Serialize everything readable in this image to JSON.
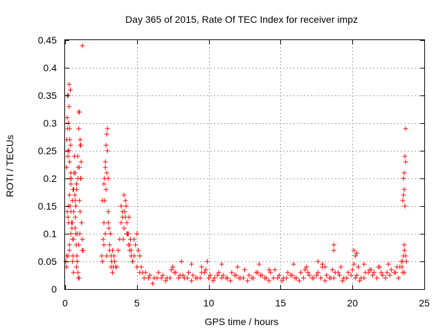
{
  "chart_data": {
    "type": "scatter",
    "title": "Day 365 of 2015, Rate Of TEC Index for receiver impz",
    "xlabel": "GPS time / hours",
    "ylabel": "ROTI / TECUs",
    "xlim": [
      0,
      25
    ],
    "ylim": [
      0,
      0.45
    ],
    "xticks": [
      0,
      5,
      10,
      15,
      20,
      25
    ],
    "xtick_labels": [
      "0",
      "5",
      "10",
      "15",
      "20",
      "25"
    ],
    "yticks": [
      0,
      0.05,
      0.1,
      0.15,
      0.2,
      0.25,
      0.3,
      0.35,
      0.4,
      0.45
    ],
    "ytick_labels": [
      "0",
      "0.05",
      "0.1",
      "0.15",
      "0.2",
      "0.25",
      "0.3",
      "0.35",
      "0.4",
      "0.45"
    ],
    "grid": true,
    "marker": "+",
    "color": "#ff0000",
    "series": [
      {
        "name": "ROTI",
        "x": [
          0.05,
          0.1,
          0.15,
          0.2,
          0.25,
          0.3,
          0.35,
          0.4,
          0.45,
          0.5,
          0.55,
          0.6,
          0.65,
          0.7,
          0.75,
          0.8,
          0.85,
          0.9,
          0.95,
          1.0,
          1.05,
          1.1,
          1.15,
          1.2,
          1.25,
          0.12,
          0.18,
          0.22,
          0.28,
          0.32,
          0.38,
          0.42,
          0.48,
          0.52,
          0.58,
          0.62,
          0.68,
          0.72,
          0.78,
          0.82,
          0.88,
          0.92,
          0.98,
          1.02,
          1.08,
          1.12,
          0.2,
          0.25,
          0.3,
          0.35,
          0.4,
          0.5,
          0.6,
          0.7,
          0.8,
          0.9,
          1.0,
          1.1,
          0.15,
          0.28,
          0.33,
          0.45,
          0.55,
          0.65,
          0.75,
          0.85,
          0.95,
          1.05,
          0.1,
          0.2,
          0.3,
          0.4,
          0.5,
          0.6,
          0.7,
          0.8,
          0.9,
          1.0,
          1.1,
          1.2,
          0.12,
          0.16,
          0.2,
          0.24,
          0.28,
          0.32,
          0.36,
          0.95,
          1.05,
          1.15,
          1.2,
          2.55,
          2.6,
          2.65,
          2.7,
          2.75,
          2.8,
          2.85,
          2.9,
          2.95,
          3.0,
          3.05,
          3.1,
          3.15,
          3.2,
          3.25,
          3.3,
          3.35,
          3.4,
          3.45,
          3.5,
          2.6,
          2.7,
          2.75,
          2.8,
          2.85,
          2.9,
          2.95,
          3.0,
          2.7,
          2.8,
          2.9,
          3.0,
          3.1,
          3.2,
          3.3,
          3.6,
          3.7,
          3.8,
          3.9,
          4.0,
          4.1,
          4.2,
          4.3,
          4.4,
          4.5,
          4.6,
          4.7,
          4.8,
          4.9,
          5.0,
          5.1,
          5.2,
          5.3,
          5.4,
          3.9,
          4.0,
          4.1,
          4.2,
          4.3,
          4.4,
          4.5,
          4.6,
          4.7,
          4.8,
          5.0,
          5.2,
          4.05,
          4.15,
          4.25,
          4.35,
          4.45,
          4.55,
          5.5,
          5.8,
          6.1,
          6.4,
          6.7,
          7.0,
          7.3,
          7.6,
          7.9,
          8.2,
          8.5,
          8.8,
          9.1,
          9.4,
          9.7,
          10.0,
          10.3,
          10.6,
          10.9,
          11.2,
          11.5,
          11.8,
          12.1,
          12.4,
          12.7,
          13.0,
          13.3,
          13.6,
          13.9,
          14.2,
          14.5,
          14.8,
          15.1,
          15.4,
          15.7,
          16.0,
          16.3,
          16.6,
          16.9,
          17.2,
          17.5,
          17.8,
          18.1,
          18.4,
          18.7,
          19.0,
          19.3,
          19.6,
          19.9,
          20.2,
          20.5,
          20.8,
          21.1,
          21.4,
          21.7,
          22.0,
          22.3,
          22.6,
          22.9,
          23.2,
          23.5,
          5.6,
          5.9,
          6.2,
          6.5,
          6.8,
          7.1,
          7.4,
          7.7,
          8.0,
          8.3,
          8.6,
          8.9,
          9.2,
          9.5,
          9.8,
          10.1,
          10.4,
          10.7,
          11.0,
          11.3,
          11.6,
          11.9,
          12.2,
          12.5,
          12.8,
          13.1,
          13.4,
          13.7,
          14.0,
          14.3,
          14.6,
          14.9,
          15.2,
          15.5,
          15.8,
          16.1,
          16.4,
          16.7,
          17.0,
          17.3,
          17.6,
          17.9,
          18.2,
          18.5,
          18.8,
          19.1,
          19.4,
          19.7,
          20.0,
          20.3,
          20.6,
          20.9,
          21.2,
          21.5,
          21.8,
          22.1,
          22.4,
          22.7,
          23.0,
          23.3,
          23.6,
          7.5,
          8.1,
          8.8,
          9.5,
          9.9,
          10.9,
          12.0,
          13.5,
          14.2,
          15.9,
          16.8,
          17.6,
          17.9,
          18.1,
          18.6,
          19.2,
          20.1,
          20.4,
          20.8,
          21.3,
          21.9,
          22.5,
          23.1,
          23.4,
          23.7,
          18.7,
          18.7,
          20.1,
          20.2,
          20.3,
          23.45,
          23.5,
          23.55,
          23.6,
          23.62,
          23.5,
          23.55,
          23.6,
          23.65,
          23.55,
          23.6,
          23.65,
          23.7,
          23.7,
          23.75
        ],
        "y": [
          0.05,
          0.22,
          0.31,
          0.25,
          0.12,
          0.07,
          0.15,
          0.19,
          0.2,
          0.09,
          0.06,
          0.18,
          0.24,
          0.21,
          0.1,
          0.04,
          0.05,
          0.03,
          0.08,
          0.16,
          0.14,
          0.2,
          0.12,
          0.09,
          0.07,
          0.27,
          0.29,
          0.35,
          0.37,
          0.23,
          0.26,
          0.14,
          0.11,
          0.05,
          0.03,
          0.21,
          0.17,
          0.13,
          0.08,
          0.06,
          0.24,
          0.02,
          0.02,
          0.1,
          0.2,
          0.23,
          0.13,
          0.15,
          0.17,
          0.2,
          0.21,
          0.16,
          0.09,
          0.11,
          0.19,
          0.22,
          0.32,
          0.26,
          0.14,
          0.25,
          0.27,
          0.12,
          0.18,
          0.24,
          0.15,
          0.1,
          0.29,
          0.27,
          0.04,
          0.06,
          0.08,
          0.1,
          0.12,
          0.14,
          0.16,
          0.18,
          0.2,
          0.22,
          0.2,
          0.44,
          0.06,
          0.35,
          0.24,
          0.3,
          0.33,
          0.29,
          0.36,
          0.32,
          0.26,
          0.12,
          0.07,
          0.06,
          0.05,
          0.09,
          0.12,
          0.16,
          0.22,
          0.26,
          0.21,
          0.29,
          0.14,
          0.11,
          0.08,
          0.1,
          0.06,
          0.05,
          0.07,
          0.04,
          0.06,
          0.05,
          0.04,
          0.16,
          0.19,
          0.2,
          0.23,
          0.18,
          0.28,
          0.25,
          0.2,
          0.08,
          0.1,
          0.06,
          0.12,
          0.07,
          0.04,
          0.03,
          0.04,
          0.07,
          0.09,
          0.12,
          0.14,
          0.17,
          0.13,
          0.1,
          0.08,
          0.07,
          0.06,
          0.05,
          0.09,
          0.08,
          0.1,
          0.07,
          0.06,
          0.04,
          0.03,
          0.15,
          0.13,
          0.11,
          0.16,
          0.12,
          0.1,
          0.08,
          0.07,
          0.05,
          0.06,
          0.04,
          0.03,
          0.09,
          0.14,
          0.15,
          0.1,
          0.13,
          0.09,
          0.02,
          0.02,
          0.01,
          0.02,
          0.02,
          0.015,
          0.02,
          0.03,
          0.02,
          0.025,
          0.02,
          0.015,
          0.02,
          0.02,
          0.03,
          0.02,
          0.015,
          0.025,
          0.02,
          0.02,
          0.015,
          0.025,
          0.02,
          0.02,
          0.015,
          0.02,
          0.03,
          0.025,
          0.02,
          0.015,
          0.02,
          0.02,
          0.015,
          0.02,
          0.025,
          0.02,
          0.015,
          0.02,
          0.03,
          0.02,
          0.025,
          0.02,
          0.015,
          0.02,
          0.02,
          0.03,
          0.015,
          0.02,
          0.025,
          0.02,
          0.015,
          0.02,
          0.03,
          0.025,
          0.02,
          0.03,
          0.02,
          0.025,
          0.03,
          0.02,
          0.03,
          0.03,
          0.025,
          0.02,
          0.03,
          0.025,
          0.02,
          0.035,
          0.03,
          0.025,
          0.02,
          0.03,
          0.025,
          0.02,
          0.03,
          0.035,
          0.025,
          0.02,
          0.03,
          0.025,
          0.02,
          0.03,
          0.025,
          0.02,
          0.035,
          0.025,
          0.02,
          0.03,
          0.025,
          0.02,
          0.03,
          0.035,
          0.025,
          0.02,
          0.03,
          0.025,
          0.02,
          0.03,
          0.035,
          0.025,
          0.02,
          0.03,
          0.04,
          0.025,
          0.02,
          0.03,
          0.025,
          0.02,
          0.03,
          0.035,
          0.025,
          0.02,
          0.03,
          0.035,
          0.03,
          0.04,
          0.025,
          0.03,
          0.035,
          0.03,
          0.04,
          0.03,
          0.04,
          0.05,
          0.045,
          0.04,
          0.05,
          0.045,
          0.04,
          0.045,
          0.035,
          0.045,
          0.04,
          0.05,
          0.045,
          0.04,
          0.035,
          0.04,
          0.045,
          0.04,
          0.045,
          0.035,
          0.04,
          0.045,
          0.04,
          0.05,
          0.06,
          0.08,
          0.07,
          0.07,
          0.06,
          0.065,
          0.04,
          0.05,
          0.06,
          0.08,
          0.07,
          0.16,
          0.17,
          0.18,
          0.15,
          0.2,
          0.21,
          0.24,
          0.23,
          0.29,
          0.05
        ]
      }
    ]
  }
}
